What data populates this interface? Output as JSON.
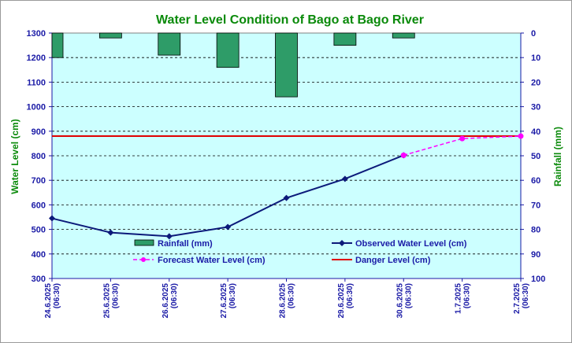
{
  "chart_data": {
    "type": "line",
    "title": "Water Level Condition of Bago at Bago River",
    "ylabel": "Water Level (cm)",
    "y2label": "Rainfall (mm)",
    "ylim": [
      300,
      1300
    ],
    "y2lim": [
      0,
      100
    ],
    "y2_inverted": true,
    "yticks": [
      "1300",
      "1200",
      "1100",
      "1000",
      "900",
      "800",
      "700",
      "600",
      "500",
      "400",
      "300"
    ],
    "y2ticks": [
      "0",
      "10",
      "20",
      "30",
      "40",
      "50",
      "60",
      "70",
      "80",
      "90",
      "100"
    ],
    "categories": [
      [
        "24.6.2025",
        "(06:30)"
      ],
      [
        "25.6.2025",
        "(06:30)"
      ],
      [
        "26.6.2025",
        "(06:30)"
      ],
      [
        "27.6.2025",
        "(06:30)"
      ],
      [
        "28.6.2025",
        "(06:30)"
      ],
      [
        "29.6.2025",
        "(06:30)"
      ],
      [
        "30.6.2025",
        "(06:30)"
      ],
      [
        "1.7.2025",
        "(06:30)"
      ],
      [
        "2.7.2025",
        "(06:30)"
      ]
    ],
    "grid": true,
    "legend_position": "inside-bottom",
    "series": [
      {
        "name": "Rainfall (mm)",
        "kind": "bar",
        "axis": "right",
        "values": [
          10,
          2,
          9,
          14,
          26,
          5,
          2,
          null,
          null
        ],
        "color": "#2e9c68"
      },
      {
        "name": "Observed Water Level (cm)",
        "kind": "line",
        "axis": "left",
        "values": [
          545,
          487,
          472,
          510,
          628,
          706,
          802,
          null,
          null
        ],
        "color": "#0c1a7a"
      },
      {
        "name": "Forecast Water Level (cm)",
        "kind": "dashed-line",
        "axis": "left",
        "values": [
          null,
          null,
          null,
          null,
          null,
          null,
          802,
          870,
          880
        ],
        "color": "#ff00ff"
      },
      {
        "name": "Danger Level (cm)",
        "kind": "hline",
        "axis": "left",
        "value": 880,
        "color": "#e00000"
      }
    ],
    "plot_background": "#ccffff"
  }
}
